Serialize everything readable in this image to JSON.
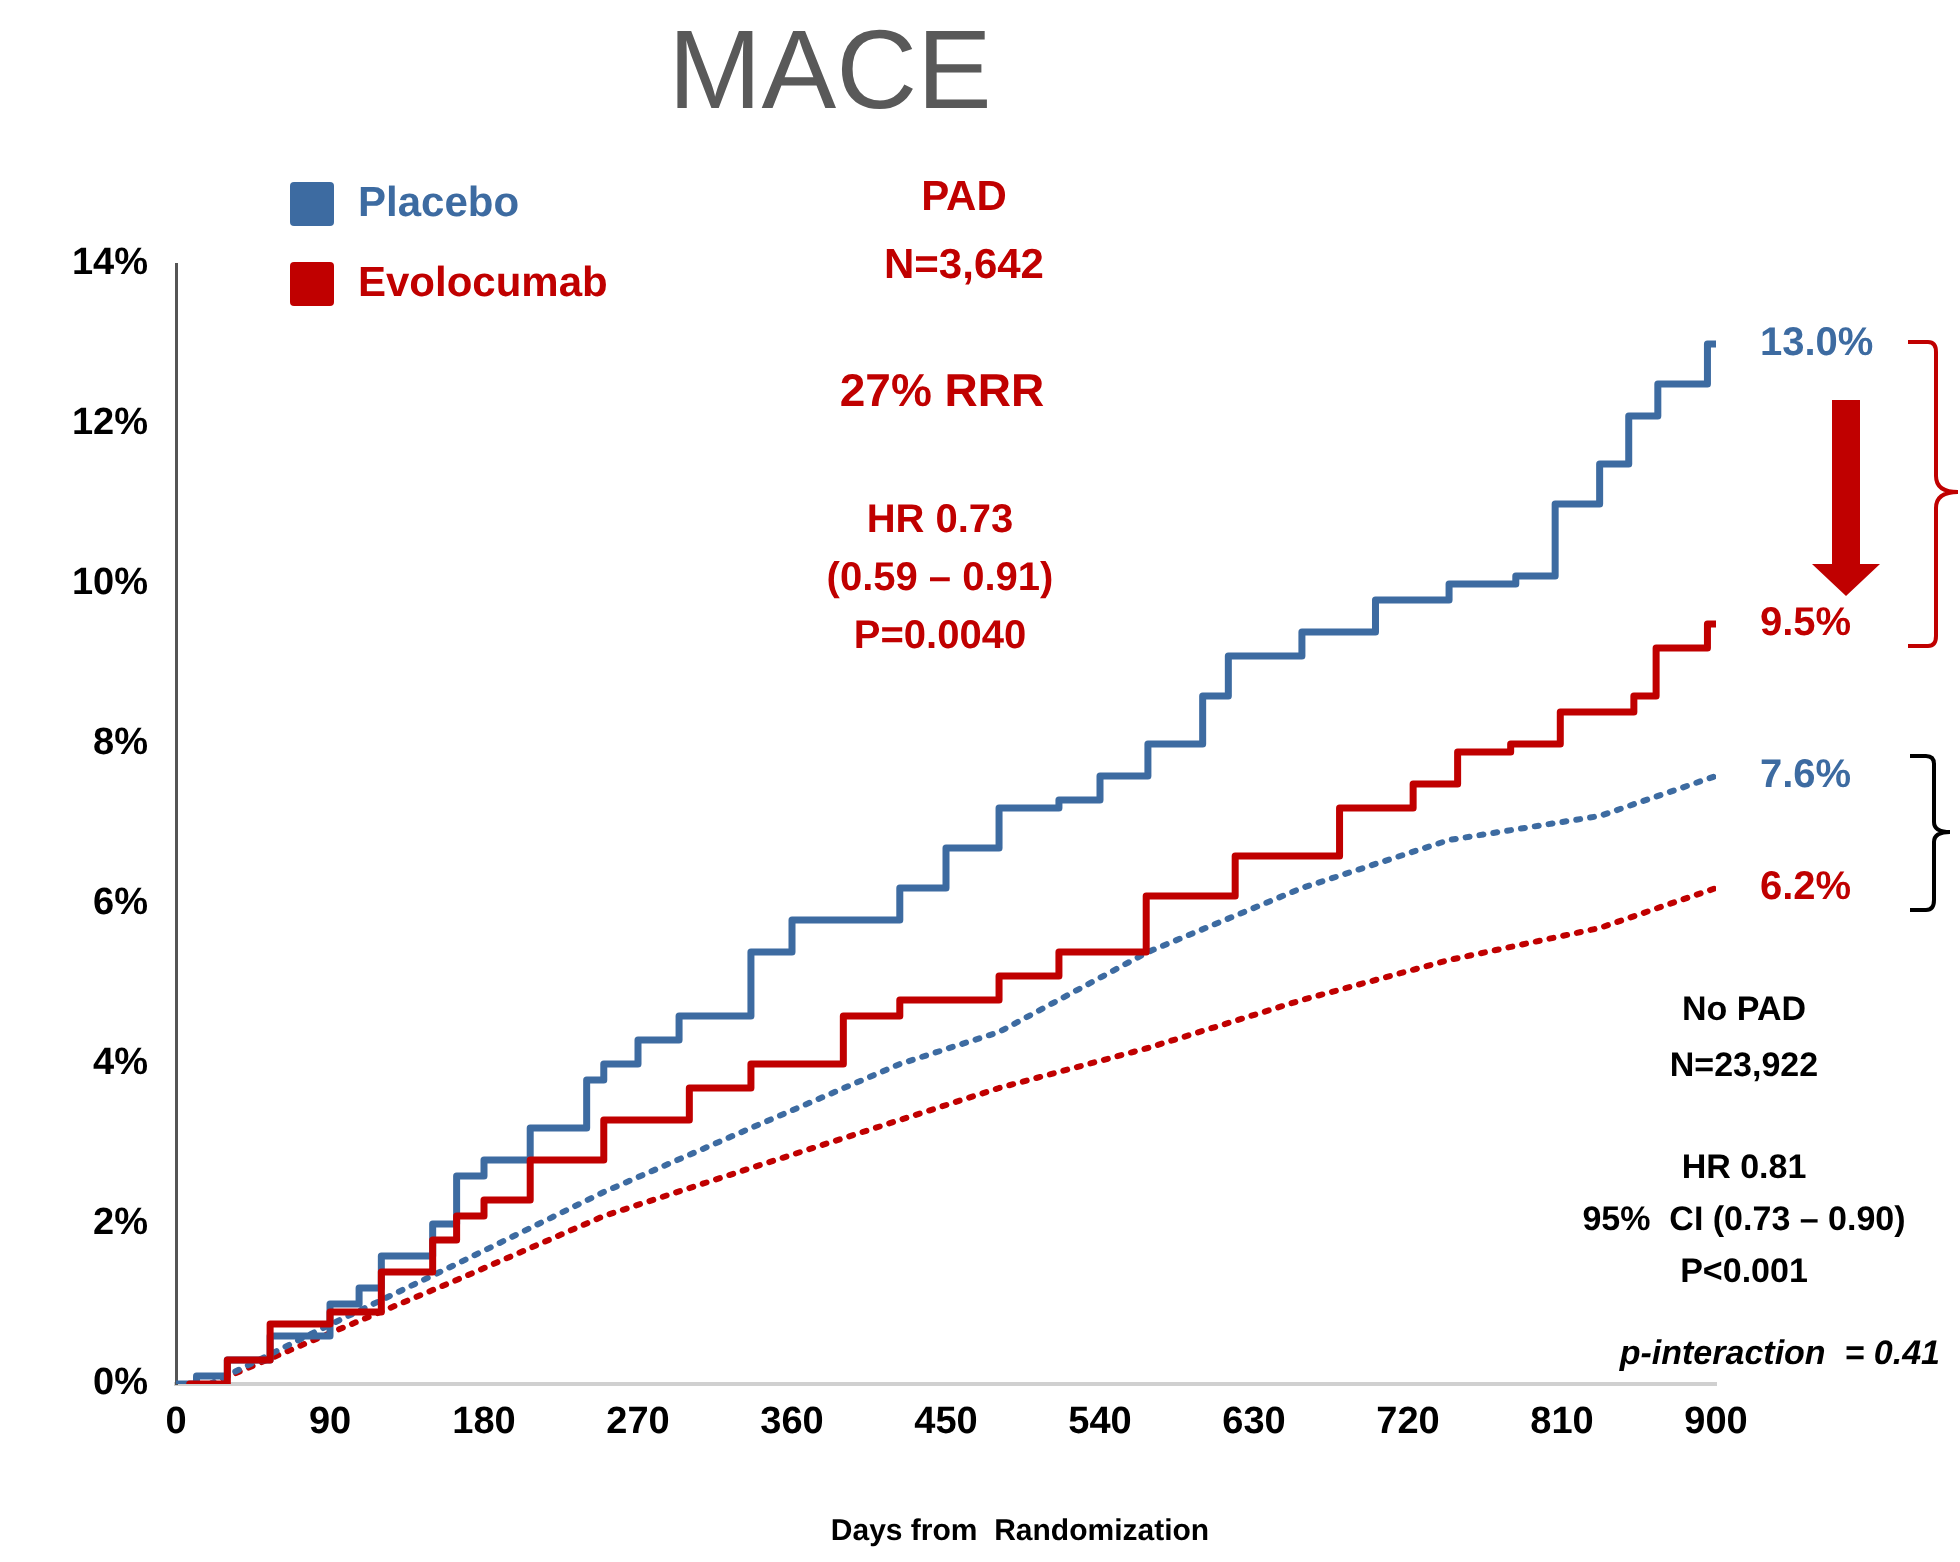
{
  "chart_data": {
    "type": "line",
    "title": "MACE",
    "xlabel": "Days from  Randomization",
    "xlim": [
      0,
      900
    ],
    "xticks": [
      0,
      90,
      180,
      270,
      360,
      450,
      540,
      630,
      720,
      810,
      900
    ],
    "ylim": [
      0,
      14
    ],
    "yticks": [
      {
        "value": 0,
        "label": "0%"
      },
      {
        "value": 2,
        "label": "2%"
      },
      {
        "value": 4,
        "label": "4%"
      },
      {
        "value": 6,
        "label": "6%"
      },
      {
        "value": 8,
        "label": "8%"
      },
      {
        "value": 10,
        "label": "10%"
      },
      {
        "value": 12,
        "label": "12%"
      },
      {
        "value": 14,
        "label": "14%"
      }
    ],
    "grid": false,
    "legend": "top left",
    "marker": "none",
    "series": [
      {
        "name": "Placebo",
        "type": "step",
        "color": "#3d6ba1",
        "line_style": "solid",
        "x": [
          0,
          12,
          30,
          55,
          90,
          107,
          120,
          150,
          164,
          180,
          207,
          240,
          250,
          270,
          294,
          336,
          360,
          423,
          450,
          481,
          516,
          540,
          568,
          600,
          615,
          658,
          701,
          744,
          783,
          806,
          832,
          849,
          866,
          895,
          900
        ],
        "values": [
          0,
          0.1,
          0.3,
          0.6,
          1.0,
          1.2,
          1.6,
          2.0,
          2.6,
          2.8,
          3.2,
          3.8,
          4.0,
          4.3,
          4.6,
          5.4,
          5.8,
          6.2,
          6.7,
          7.2,
          7.3,
          7.6,
          8.0,
          8.6,
          9.1,
          9.4,
          9.8,
          10.0,
          10.1,
          11.0,
          11.5,
          12.1,
          12.5,
          13.0,
          13.0
        ],
        "value_labels": [
          null,
          null,
          null,
          null,
          null,
          null,
          null,
          null,
          null,
          null,
          null,
          null,
          null,
          null,
          null,
          null,
          null,
          null,
          null,
          null,
          null,
          null,
          null,
          null,
          null,
          null,
          null,
          null,
          null,
          null,
          null,
          null,
          null,
          null,
          "13.0%"
        ]
      },
      {
        "name": "Evolocumab",
        "type": "step",
        "color": "#c00000",
        "line_style": "solid",
        "x": [
          8,
          25,
          30,
          55,
          90,
          120,
          150,
          164,
          180,
          207,
          250,
          300,
          336,
          390,
          423,
          481,
          516,
          567,
          619,
          680,
          723,
          749,
          780,
          809,
          852,
          865,
          895,
          900
        ],
        "values": [
          0,
          0,
          0.3,
          0.75,
          0.9,
          1.4,
          1.8,
          2.1,
          2.3,
          2.8,
          3.3,
          3.7,
          4.0,
          4.6,
          4.8,
          5.1,
          5.4,
          6.1,
          6.6,
          7.2,
          7.5,
          7.9,
          8.0,
          8.4,
          8.6,
          9.2,
          9.5,
          9.5
        ],
        "value_labels": [
          null,
          null,
          null,
          null,
          null,
          null,
          null,
          null,
          null,
          null,
          null,
          null,
          null,
          null,
          null,
          null,
          null,
          null,
          null,
          null,
          null,
          null,
          null,
          null,
          null,
          null,
          null,
          "9.5%"
        ]
      },
      {
        "type": "line",
        "color": "#3d6ba1",
        "line_style": "dotted",
        "x": [
          20,
          86,
          164,
          250,
          336,
          423,
          481,
          568,
          658,
          744,
          832,
          900
        ],
        "values": [
          0,
          0.7,
          1.5,
          2.4,
          3.2,
          4.0,
          4.4,
          5.4,
          6.2,
          6.8,
          7.1,
          7.6
        ],
        "value_labels": [
          null,
          null,
          null,
          null,
          null,
          null,
          null,
          null,
          null,
          null,
          null,
          "7.6%"
        ]
      },
      {
        "type": "line",
        "color": "#c00000",
        "line_style": "dotted",
        "x": [
          20,
          86,
          164,
          250,
          336,
          423,
          481,
          568,
          658,
          744,
          832,
          900
        ],
        "values": [
          0,
          0.6,
          1.3,
          2.1,
          2.7,
          3.3,
          3.7,
          4.2,
          4.8,
          5.3,
          5.7,
          6.2
        ],
        "value_labels": [
          null,
          null,
          null,
          null,
          null,
          null,
          null,
          null,
          null,
          null,
          null,
          "6.2%"
        ]
      }
    ],
    "annotations": [
      "PAD\nN=3,642",
      "27% RRR",
      "HR 0.73\n(0.59 – 0.91)\nP=0.0040",
      "No PAD\nN=23,922",
      "HR 0.81\n95%  CI (0.73 – 0.90)\nP<0.001",
      "p-interaction  = 0.41"
    ]
  }
}
